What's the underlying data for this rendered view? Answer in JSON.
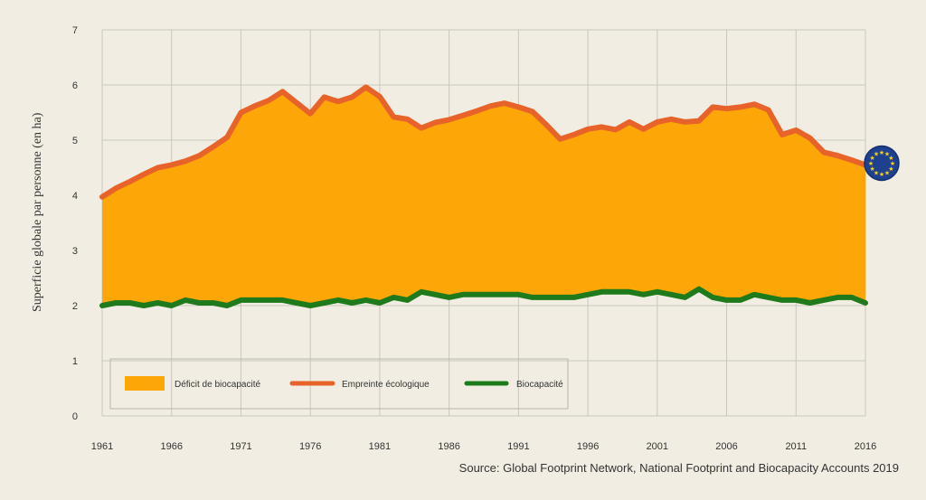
{
  "chart_data": {
    "type": "area",
    "ylabel": "Superficie globale par personne (en ha)",
    "xlabel": "",
    "xlim": [
      1961,
      2016
    ],
    "ylim": [
      0,
      7
    ],
    "x_ticks": [
      "1961",
      "1966",
      "1971",
      "1976",
      "1981",
      "1986",
      "1991",
      "1996",
      "2001",
      "2006",
      "2011",
      "2016"
    ],
    "y_ticks": [
      "0",
      "1",
      "2",
      "3",
      "4",
      "5",
      "6",
      "7"
    ],
    "grid": true,
    "x": [
      1961,
      1962,
      1963,
      1964,
      1965,
      1966,
      1967,
      1968,
      1969,
      1970,
      1971,
      1972,
      1973,
      1974,
      1975,
      1976,
      1977,
      1978,
      1979,
      1980,
      1981,
      1982,
      1983,
      1984,
      1985,
      1986,
      1987,
      1988,
      1989,
      1990,
      1991,
      1992,
      1993,
      1994,
      1995,
      1996,
      1997,
      1998,
      1999,
      2000,
      2001,
      2002,
      2003,
      2004,
      2005,
      2006,
      2007,
      2008,
      2009,
      2010,
      2011,
      2012,
      2013,
      2014,
      2015,
      2016
    ],
    "series": [
      {
        "name": "Empreinte écologique",
        "color": "#e8632a",
        "values": [
          3.97,
          4.13,
          4.25,
          4.38,
          4.5,
          4.55,
          4.62,
          4.72,
          4.88,
          5.05,
          5.5,
          5.62,
          5.72,
          5.88,
          5.68,
          5.48,
          5.78,
          5.7,
          5.78,
          5.96,
          5.79,
          5.42,
          5.38,
          5.22,
          5.32,
          5.37,
          5.45,
          5.53,
          5.62,
          5.67,
          5.6,
          5.52,
          5.28,
          5.02,
          5.1,
          5.2,
          5.24,
          5.19,
          5.33,
          5.2,
          5.33,
          5.38,
          5.33,
          5.35,
          5.6,
          5.57,
          5.6,
          5.65,
          5.55,
          5.1,
          5.18,
          5.04,
          4.78,
          4.72,
          4.64,
          4.55
        ]
      },
      {
        "name": "Biocapacité",
        "color": "#1e7a1a",
        "values": [
          2.0,
          2.05,
          2.05,
          2.0,
          2.05,
          2.0,
          2.1,
          2.05,
          2.05,
          2.0,
          2.1,
          2.1,
          2.1,
          2.1,
          2.05,
          2.0,
          2.05,
          2.1,
          2.05,
          2.1,
          2.05,
          2.15,
          2.1,
          2.25,
          2.2,
          2.15,
          2.2,
          2.2,
          2.2,
          2.2,
          2.2,
          2.15,
          2.15,
          2.15,
          2.15,
          2.2,
          2.25,
          2.25,
          2.25,
          2.2,
          2.25,
          2.2,
          2.15,
          2.3,
          2.15,
          2.1,
          2.1,
          2.2,
          2.15,
          2.1,
          2.1,
          2.05,
          2.1,
          2.15,
          2.15,
          2.05
        ]
      }
    ],
    "fill": {
      "name": "Déficit de biocapacité",
      "color": "#fca607"
    },
    "legend": {
      "placement": "bottom-left",
      "items": [
        {
          "label": "Déficit de biocapacité",
          "kind": "box",
          "color": "#fca607"
        },
        {
          "label": "Empreinte écologique",
          "kind": "line",
          "color": "#e8632a"
        },
        {
          "label": "Biocapacité",
          "kind": "line",
          "color": "#1e7a1a"
        }
      ]
    },
    "marker": {
      "icon": "eu-flag-icon",
      "color": "#1f3f8f",
      "star_color": "#f7d419"
    },
    "colors": {
      "background": "#f1ede2",
      "grid": "#c9c6bc"
    }
  },
  "source": "Source: Global Footprint Network, National Footprint and Biocapacity Accounts 2019"
}
